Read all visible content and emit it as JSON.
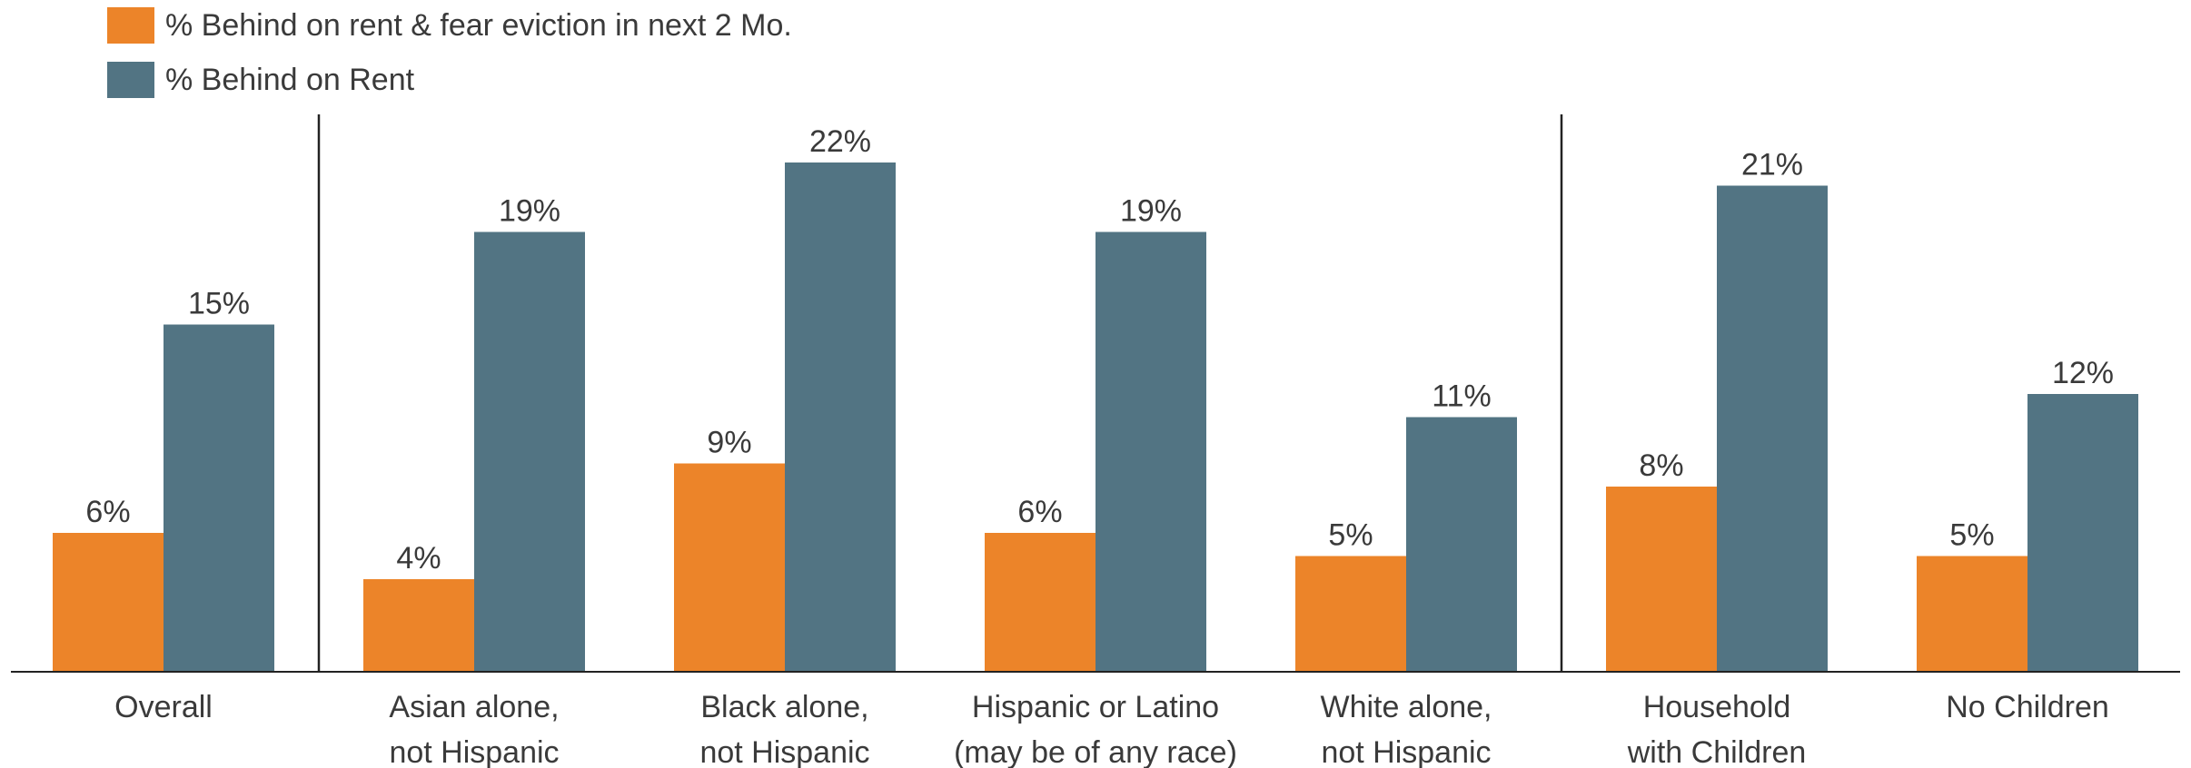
{
  "colors": {
    "orange": "#ec8429",
    "slate": "#527483",
    "axis": "#222222"
  },
  "chart_data": {
    "type": "bar",
    "title": "",
    "xlabel": "",
    "ylabel": "",
    "ylim": [
      0,
      24
    ],
    "grid": false,
    "legend_position": "top-left",
    "categories": [
      [
        "Overall"
      ],
      [
        "Asian alone,",
        "not Hispanic"
      ],
      [
        "Black alone,",
        "not Hispanic"
      ],
      [
        "Hispanic or Latino",
        "(may be of any race)"
      ],
      [
        "White alone,",
        "not Hispanic"
      ],
      [
        "Household",
        "with Children"
      ],
      [
        "No Children"
      ]
    ],
    "series": [
      {
        "name": "% Behind on rent & fear eviction in next 2 Mo.",
        "color": "#ec8429",
        "values": [
          6,
          4,
          9,
          6,
          5,
          8,
          5
        ],
        "labels": [
          "6%",
          "4%",
          "9%",
          "6%",
          "5%",
          "8%",
          "5%"
        ]
      },
      {
        "name": "% Behind on Rent",
        "color": "#527483",
        "values": [
          15,
          19,
          22,
          19,
          11,
          21,
          12
        ],
        "labels": [
          "15%",
          "19%",
          "22%",
          "19%",
          "11%",
          "21%",
          "12%"
        ]
      }
    ],
    "group_dividers_after": [
      0,
      4
    ]
  }
}
